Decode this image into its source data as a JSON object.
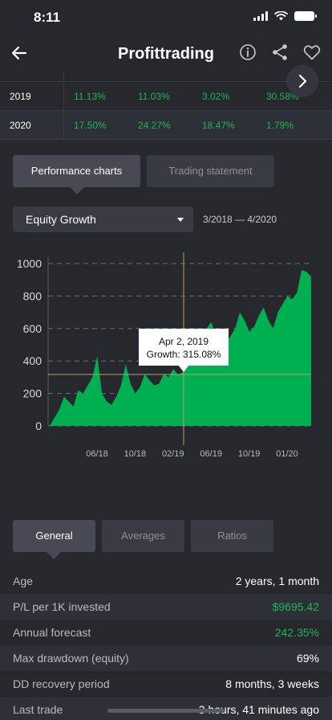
{
  "status": {
    "time": "8:11"
  },
  "nav": {
    "title": "Profittrading"
  },
  "yearly": [
    {
      "year": "2019",
      "values": [
        "11.13%",
        "11.03%",
        "3.02%",
        "30.58%"
      ]
    },
    {
      "year": "2020",
      "values": [
        "17.50%",
        "24.27%",
        "18.47%",
        "1.79%"
      ]
    }
  ],
  "chart_tabs": [
    "Performance charts",
    "Trading statement"
  ],
  "dropdown": {
    "selected": "Equity Growth",
    "date_range": "3/2018 — 4/2020"
  },
  "chart_data": {
    "type": "area",
    "ylim": [
      0,
      1000
    ],
    "yticks": [
      0,
      200,
      400,
      600,
      800,
      1000
    ],
    "xticks": [
      "06/18",
      "10/18",
      "02/19",
      "06/19",
      "10/19",
      "01/20"
    ],
    "tooltip": {
      "date": "Apr 2, 2019",
      "label": "Growth: 315.08%"
    },
    "series_color": "#00b050",
    "values": [
      0,
      50,
      100,
      180,
      150,
      120,
      220,
      200,
      250,
      300,
      430,
      200,
      150,
      130,
      180,
      250,
      380,
      260,
      200,
      240,
      320,
      280,
      250,
      260,
      320,
      300,
      350,
      315,
      330,
      380,
      400,
      380,
      430,
      600,
      640,
      550,
      500,
      520,
      550,
      600,
      700,
      650,
      580,
      610,
      680,
      730,
      650,
      600,
      700,
      750,
      800,
      780,
      820,
      960,
      950,
      920
    ]
  },
  "general_tabs": [
    "General",
    "Averages",
    "Ratios"
  ],
  "general": [
    {
      "label": "Age",
      "value": "2 years, 1 month",
      "green": false
    },
    {
      "label": "P/L per 1K invested",
      "value": "$9695.42",
      "green": true
    },
    {
      "label": "Annual forecast",
      "value": "242.35%",
      "green": true
    },
    {
      "label": "Max drawdown (equity)",
      "value": "69%",
      "green": false
    },
    {
      "label": "DD recovery period",
      "value": "8 months, 3 weeks",
      "green": false
    },
    {
      "label": "Last trade",
      "value": "3 hours, 41 minutes ago",
      "green": false
    }
  ]
}
